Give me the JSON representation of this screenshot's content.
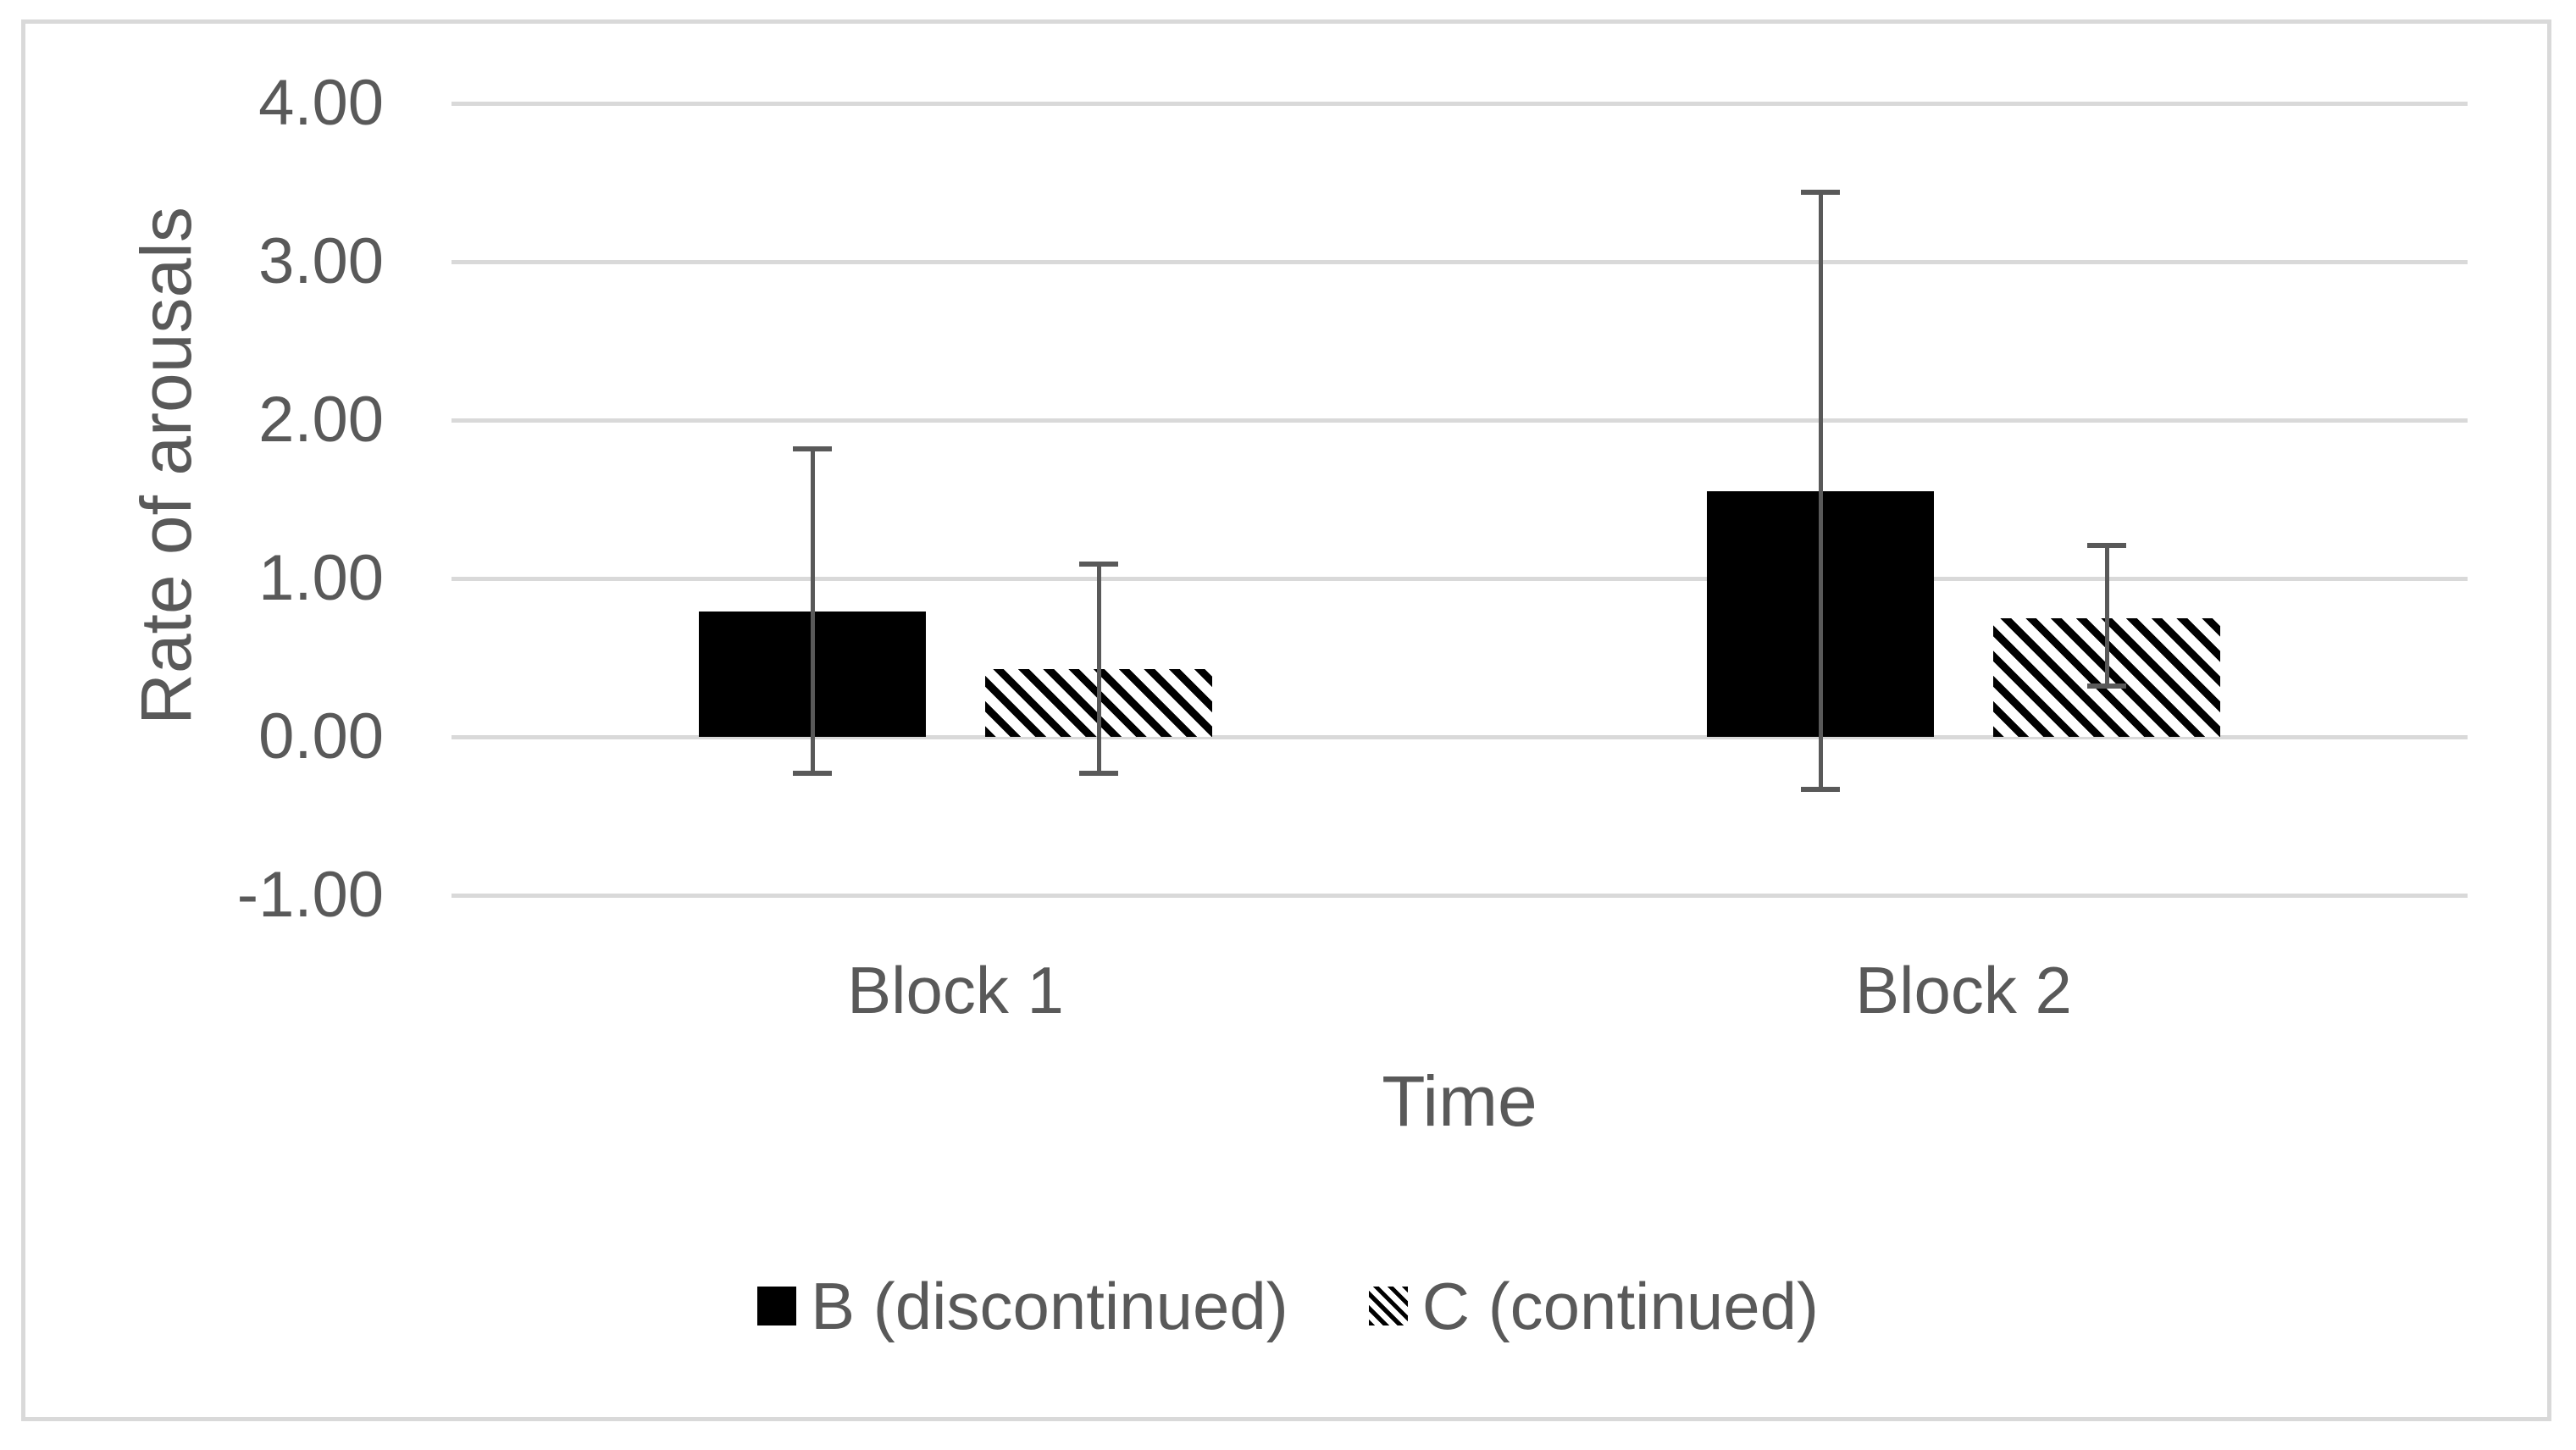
{
  "figure": {
    "background": "#ffffff",
    "border_color": "#d9d9d9"
  },
  "chart_data": {
    "type": "bar",
    "title": "",
    "xlabel": "Time",
    "ylabel": "Rate of arousals",
    "categories": [
      "Block 1",
      "Block 2"
    ],
    "series": [
      {
        "name": "B (discontinued)",
        "fill": "solid-black",
        "values": [
          0.79,
          1.55
        ],
        "error_low": [
          -0.23,
          -0.33
        ],
        "error_high": [
          1.82,
          3.44
        ]
      },
      {
        "name": "C (continued)",
        "fill": "diagonal-hatch",
        "values": [
          0.43,
          0.75
        ],
        "error_low": [
          -0.23,
          0.32
        ],
        "error_high": [
          1.09,
          1.21
        ]
      }
    ],
    "ylim": [
      -1.0,
      4.0
    ],
    "ytick_step": 1.0,
    "yticks": [
      "4.00",
      "3.00",
      "2.00",
      "1.00",
      "0.00",
      "-1.00"
    ],
    "grid": "horizontal",
    "legend_position": "bottom",
    "colors": {
      "bar_fill": "#000000",
      "text": "#595959",
      "gridline": "#d9d9d9",
      "error_bar": "#595959"
    }
  }
}
